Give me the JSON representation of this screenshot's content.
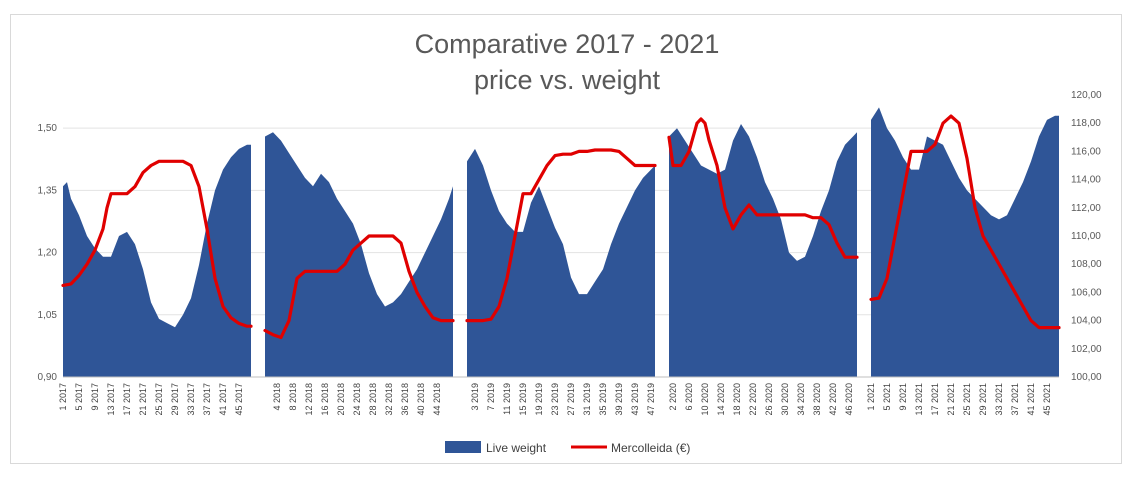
{
  "chart_data": {
    "type": "area+line",
    "title": [
      "Comparative 2017 - 2021",
      "price vs. weight"
    ],
    "y_left": {
      "ticks": [
        "0,90",
        "1,05",
        "1,20",
        "1,35",
        "1,50"
      ],
      "ylim": [
        0.9,
        1.58
      ]
    },
    "y_right": {
      "ticks": [
        "100,00",
        "102,00",
        "104,00",
        "106,00",
        "108,00",
        "110,00",
        "112,00",
        "114,00",
        "116,00",
        "118,00",
        "120,00"
      ],
      "ylim": [
        100,
        120
      ]
    },
    "grid": true,
    "legend_position": "bottom",
    "colors": {
      "area": "#2f5597",
      "line": "#e00000",
      "grid": "#e3e3e3"
    },
    "series": [
      {
        "name": "Live weight",
        "type": "area",
        "axis": "left"
      },
      {
        "name": "Mercolleida (€)",
        "type": "line",
        "axis": "right"
      }
    ],
    "panels": [
      {
        "year": "2017",
        "x_labels": [
          "1 2017",
          "5 2017",
          "9 2017",
          "13 2017",
          "17 2017",
          "21 2017",
          "25 2017",
          "29 2017",
          "33 2017",
          "37 2017",
          "41 2017",
          "45 2017"
        ],
        "weeks": [
          1,
          5,
          9,
          13,
          17,
          21,
          25,
          29,
          33,
          37,
          41,
          45,
          48
        ],
        "weight_weeks": [
          1,
          2,
          3,
          5,
          7,
          9,
          11,
          13,
          15,
          17,
          19,
          21,
          23,
          25,
          27,
          29,
          31,
          33,
          35,
          37,
          39,
          41,
          43,
          45,
          47,
          48
        ],
        "live_weight": [
          1.36,
          1.37,
          1.33,
          1.29,
          1.24,
          1.21,
          1.19,
          1.19,
          1.24,
          1.25,
          1.22,
          1.16,
          1.08,
          1.04,
          1.03,
          1.02,
          1.05,
          1.09,
          1.17,
          1.27,
          1.35,
          1.4,
          1.43,
          1.45,
          1.46,
          1.46
        ],
        "price_weeks": [
          1,
          3,
          5,
          7,
          9,
          11,
          12,
          13,
          15,
          17,
          19,
          21,
          23,
          25,
          27,
          29,
          31,
          33,
          35,
          37,
          39,
          41,
          43,
          45,
          47,
          48
        ],
        "price": [
          106.5,
          106.6,
          107.2,
          108.0,
          109.0,
          110.5,
          112.0,
          113.0,
          113.0,
          113.0,
          113.5,
          114.5,
          115.0,
          115.3,
          115.3,
          115.3,
          115.3,
          115.0,
          113.5,
          110.5,
          107.0,
          105.0,
          104.2,
          103.8,
          103.6,
          103.6
        ]
      },
      {
        "year": "2018",
        "x_labels": [
          "4 2018",
          "8 2018",
          "12 2018",
          "16 2018",
          "20 2018",
          "24 2018",
          "28 2018",
          "32 2018",
          "36 2018",
          "40 2018",
          "44 2018"
        ],
        "weeks": [
          4,
          8,
          12,
          16,
          20,
          24,
          28,
          32,
          36,
          40,
          44,
          48
        ],
        "weight_weeks": [
          1,
          3,
          5,
          7,
          9,
          11,
          13,
          15,
          17,
          19,
          21,
          23,
          25,
          27,
          29,
          31,
          33,
          35,
          37,
          39,
          41,
          43,
          45,
          47,
          48
        ],
        "live_weight": [
          1.48,
          1.49,
          1.47,
          1.44,
          1.41,
          1.38,
          1.36,
          1.39,
          1.37,
          1.33,
          1.3,
          1.27,
          1.22,
          1.15,
          1.1,
          1.07,
          1.08,
          1.1,
          1.13,
          1.16,
          1.2,
          1.24,
          1.28,
          1.33,
          1.36
        ],
        "price_weeks": [
          1,
          3,
          5,
          7,
          9,
          11,
          13,
          15,
          17,
          19,
          21,
          23,
          25,
          27,
          29,
          31,
          33,
          35,
          37,
          39,
          41,
          43,
          45,
          47,
          48
        ],
        "price": [
          103.3,
          103.0,
          102.8,
          104.0,
          107.0,
          107.5,
          107.5,
          107.5,
          107.5,
          107.5,
          108.0,
          109.0,
          109.5,
          110.0,
          110.0,
          110.0,
          110.0,
          109.5,
          107.5,
          106.0,
          105.0,
          104.2,
          104.0,
          104.0,
          104.0
        ]
      },
      {
        "year": "2019",
        "x_labels": [
          "3 2019",
          "7 2019",
          "11 2019",
          "15 2019",
          "19 2019",
          "23 2019",
          "27 2019",
          "31 2019",
          "35 2019",
          "39 2019",
          "43 2019",
          "47 2019"
        ],
        "weeks": [
          3,
          7,
          11,
          15,
          19,
          23,
          27,
          31,
          35,
          39,
          43,
          47
        ],
        "weight_weeks": [
          1,
          3,
          5,
          7,
          9,
          11,
          13,
          15,
          17,
          19,
          21,
          23,
          25,
          27,
          29,
          31,
          33,
          35,
          37,
          39,
          41,
          43,
          45,
          47,
          48
        ],
        "live_weight": [
          1.42,
          1.45,
          1.41,
          1.35,
          1.3,
          1.27,
          1.25,
          1.25,
          1.32,
          1.36,
          1.31,
          1.26,
          1.22,
          1.14,
          1.1,
          1.1,
          1.13,
          1.16,
          1.22,
          1.27,
          1.31,
          1.35,
          1.38,
          1.4,
          1.41
        ],
        "price_weeks": [
          1,
          3,
          5,
          7,
          9,
          11,
          13,
          15,
          17,
          19,
          21,
          23,
          25,
          27,
          29,
          31,
          33,
          35,
          37,
          39,
          41,
          43,
          45,
          47,
          48
        ],
        "price": [
          104.0,
          104.0,
          104.0,
          104.1,
          105.0,
          107.0,
          110.0,
          113.0,
          113.0,
          114.0,
          115.0,
          115.7,
          115.8,
          115.8,
          116.0,
          116.0,
          116.1,
          116.1,
          116.1,
          116.0,
          115.5,
          115.0,
          115.0,
          115.0,
          115.0
        ]
      },
      {
        "year": "2020",
        "x_labels": [
          "2 2020",
          "6 2020",
          "10 2020",
          "14 2020",
          "18 2020",
          "22 2020",
          "26 2020",
          "30 2020",
          "34 2020",
          "38 2020",
          "42 2020",
          "46 2020"
        ],
        "weeks": [
          2,
          6,
          10,
          14,
          18,
          22,
          26,
          30,
          34,
          38,
          42,
          46
        ],
        "weight_weeks": [
          1,
          3,
          5,
          7,
          9,
          11,
          13,
          15,
          17,
          19,
          21,
          23,
          25,
          27,
          29,
          31,
          33,
          35,
          37,
          39,
          41,
          43,
          45,
          47,
          48
        ],
        "live_weight": [
          1.48,
          1.5,
          1.47,
          1.44,
          1.41,
          1.4,
          1.39,
          1.4,
          1.47,
          1.51,
          1.48,
          1.43,
          1.37,
          1.33,
          1.28,
          1.2,
          1.18,
          1.19,
          1.24,
          1.3,
          1.35,
          1.42,
          1.46,
          1.48,
          1.49
        ],
        "price_weeks": [
          1,
          2,
          4,
          6,
          8,
          9,
          10,
          11,
          13,
          15,
          17,
          19,
          21,
          23,
          25,
          27,
          29,
          31,
          33,
          35,
          37,
          39,
          41,
          43,
          45,
          47,
          48
        ],
        "price": [
          117.0,
          115.0,
          115.0,
          116.0,
          118.0,
          118.3,
          118.0,
          116.8,
          115.0,
          112.0,
          110.5,
          111.5,
          112.2,
          111.5,
          111.5,
          111.5,
          111.5,
          111.5,
          111.5,
          111.5,
          111.3,
          111.3,
          110.8,
          109.5,
          108.5,
          108.5,
          108.5
        ]
      },
      {
        "year": "2021",
        "x_labels": [
          "1 2021",
          "5 2021",
          "9 2021",
          "13 2021",
          "17 2021",
          "21 2021",
          "25 2021",
          "29 2021",
          "33 2021",
          "37 2021",
          "41 2021",
          "45 2021"
        ],
        "weeks": [
          1,
          5,
          9,
          13,
          17,
          21,
          25,
          29,
          33,
          37,
          41,
          45
        ],
        "weight_weeks": [
          1,
          3,
          5,
          7,
          9,
          11,
          13,
          15,
          17,
          19,
          21,
          23,
          25,
          27,
          29,
          31,
          33,
          35,
          37,
          39,
          41,
          43,
          45,
          47,
          48
        ],
        "live_weight": [
          1.52,
          1.55,
          1.5,
          1.47,
          1.43,
          1.4,
          1.4,
          1.48,
          1.47,
          1.46,
          1.42,
          1.38,
          1.35,
          1.33,
          1.31,
          1.29,
          1.28,
          1.29,
          1.33,
          1.37,
          1.42,
          1.48,
          1.52,
          1.53,
          1.53
        ],
        "price_weeks": [
          1,
          3,
          5,
          7,
          9,
          11,
          13,
          15,
          17,
          19,
          21,
          23,
          25,
          27,
          29,
          31,
          33,
          35,
          37,
          39,
          41,
          43,
          45,
          47,
          48
        ],
        "price": [
          105.5,
          105.6,
          107.0,
          110.0,
          113.0,
          116.0,
          116.0,
          116.0,
          116.5,
          118.0,
          118.5,
          118.0,
          115.5,
          112.0,
          110.0,
          109.0,
          108.0,
          107.0,
          106.0,
          105.0,
          104.0,
          103.5,
          103.5,
          103.5,
          103.5
        ]
      }
    ]
  }
}
